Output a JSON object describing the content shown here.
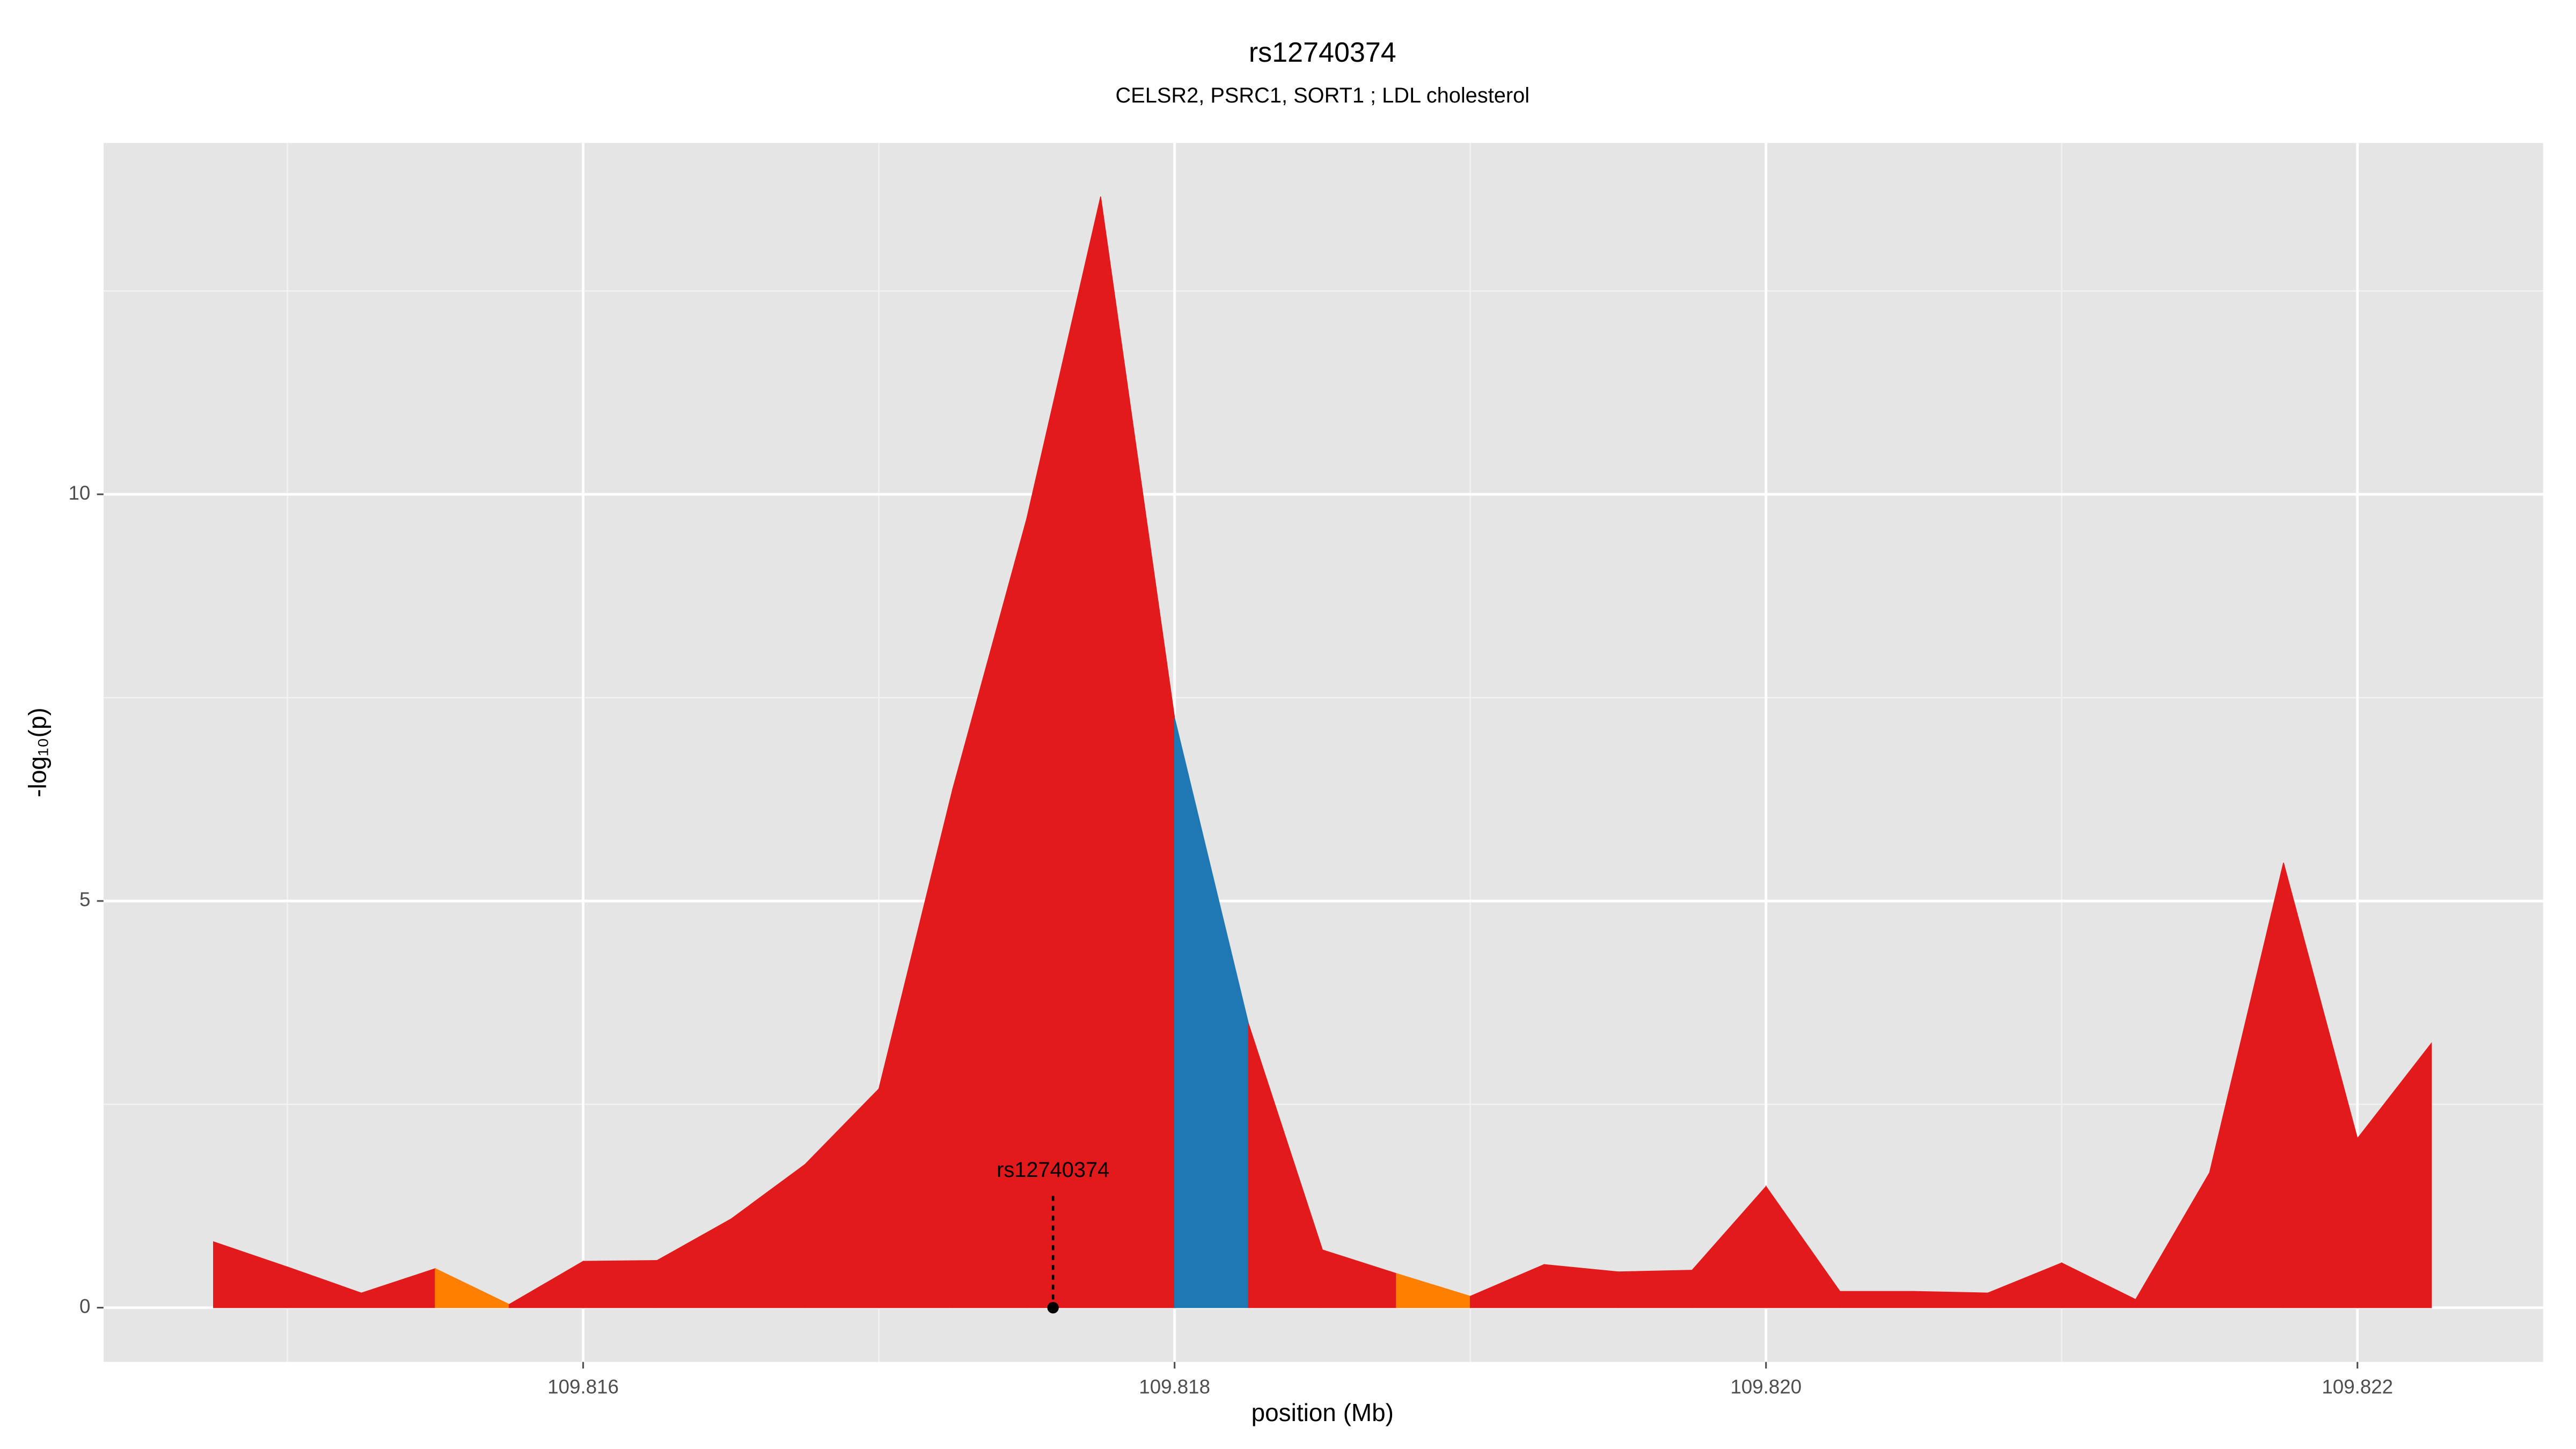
{
  "chart_data": {
    "type": "area",
    "title": "rs12740374",
    "subtitle": "CELSR2, PSRC1, SORT1 ; LDL cholesterol",
    "x_label": "position (Mb)",
    "y_label": "-log₁₀(p)",
    "x": [
      109.81475,
      109.815,
      109.81525,
      109.8155,
      109.81575,
      109.816,
      109.81625,
      109.8165,
      109.81675,
      109.817,
      109.81725,
      109.8175,
      109.81775,
      109.818,
      109.81825,
      109.8185,
      109.81875,
      109.819,
      109.81925,
      109.8195,
      109.81975,
      109.82,
      109.82025,
      109.8205,
      109.82075,
      109.821,
      109.82125,
      109.8215,
      109.82175,
      109.822,
      109.82225
    ],
    "values": [
      0.81,
      0.5,
      0.18,
      0.48,
      0.04,
      0.57,
      0.58,
      1.09,
      1.76,
      2.69,
      6.38,
      9.7,
      13.66,
      7.25,
      3.49,
      0.71,
      0.42,
      0.14,
      0.53,
      0.44,
      0.46,
      1.49,
      0.2,
      0.2,
      0.18,
      0.55,
      0.1,
      1.66,
      5.47,
      2.08,
      3.25
    ],
    "segment_colors": [
      "#e31a1c",
      "#e31a1c",
      "#e31a1c",
      "#ff7f00",
      "#e31a1c",
      "#e31a1c",
      "#e31a1c",
      "#e31a1c",
      "#e31a1c",
      "#e31a1c",
      "#e31a1c",
      "#e31a1c",
      "#e31a1c",
      "#1f78b4",
      "#e31a1c",
      "#e31a1c",
      "#ff7f00",
      "#e31a1c",
      "#e31a1c",
      "#e31a1c",
      "#e31a1c",
      "#e31a1c",
      "#e31a1c",
      "#e31a1c",
      "#e31a1c",
      "#e31a1c",
      "#e31a1c",
      "#e31a1c",
      "#e31a1c",
      "#e31a1c"
    ],
    "annotation": {
      "text": "rs12740374",
      "x": 109.817589,
      "y": 0
    },
    "xlim": [
      109.814378,
      109.822628
    ],
    "ylim": [
      -0.667,
      14.32
    ],
    "xticks": [
      109.816,
      109.818,
      {
        "value": 109.82,
        "label": "109.820"
      },
      109.822
    ],
    "yticks": [
      0,
      5,
      10
    ],
    "x_minor_ticks": [
      109.815,
      109.817,
      109.819,
      109.821
    ],
    "y_minor_ticks": [
      2.5,
      7.5,
      12.5
    ],
    "grid": true
  }
}
